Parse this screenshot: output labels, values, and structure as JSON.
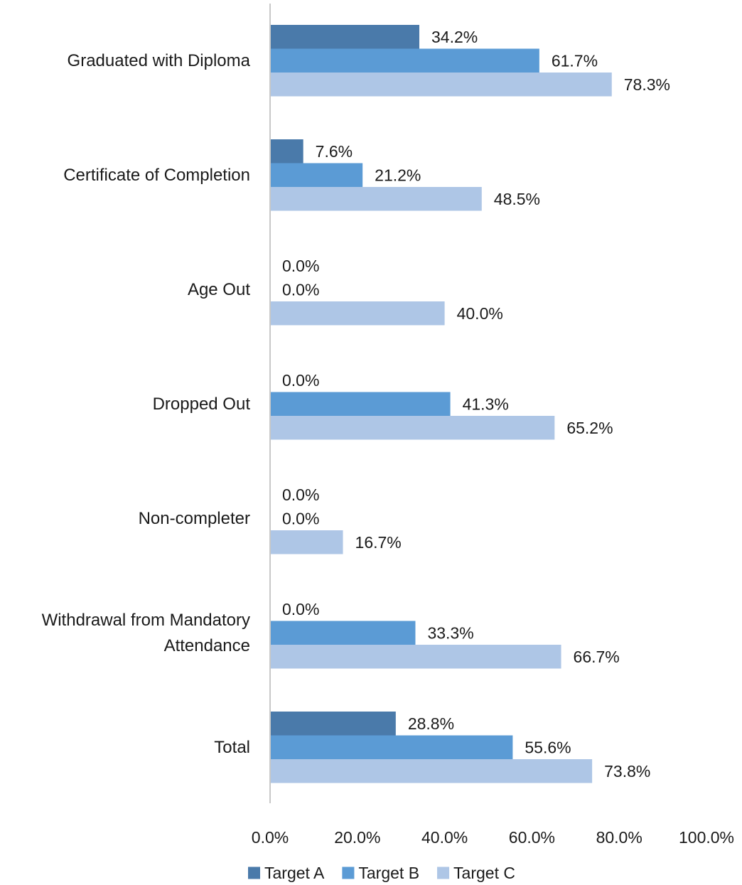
{
  "chart_data": {
    "type": "bar",
    "orientation": "horizontal",
    "categories": [
      [
        "Graduated with Diploma"
      ],
      [
        "Certificate of Completion"
      ],
      [
        "Age Out"
      ],
      [
        "Dropped Out"
      ],
      [
        "Non-completer"
      ],
      [
        "Withdrawal from Mandatory",
        "Attendance"
      ],
      [
        "Total"
      ]
    ],
    "series": [
      {
        "name": "Target A",
        "color": "#4a7aaa",
        "values": [
          34.2,
          7.6,
          0.0,
          0.0,
          0.0,
          0.0,
          28.8
        ],
        "labels": [
          "34.2%",
          "7.6%",
          "0.0%",
          "0.0%",
          "0.0%",
          "0.0%",
          "28.8%"
        ]
      },
      {
        "name": "Target B",
        "color": "#5b9bd5",
        "values": [
          61.7,
          21.2,
          0.0,
          41.3,
          0.0,
          33.3,
          55.6
        ],
        "labels": [
          "61.7%",
          "21.2%",
          "0.0%",
          "41.3%",
          "0.0%",
          "33.3%",
          "55.6%"
        ]
      },
      {
        "name": "Target C",
        "color": "#aec6e6",
        "values": [
          78.3,
          48.5,
          40.0,
          65.2,
          16.7,
          66.7,
          73.8
        ],
        "labels": [
          "78.3%",
          "48.5%",
          "40.0%",
          "65.2%",
          "16.7%",
          "66.7%",
          "73.8%"
        ]
      }
    ],
    "x_ticks": [
      0,
      20,
      40,
      60,
      80,
      100
    ],
    "x_tick_labels": [
      "0.0%",
      "20.0%",
      "40.0%",
      "60.0%",
      "80.0%",
      "100.0%"
    ],
    "xlim": [
      0,
      100
    ],
    "xlabel": "",
    "ylabel": "",
    "title": "",
    "grid": false,
    "legend_position": "bottom",
    "axis_color": "#c8c8c8"
  }
}
